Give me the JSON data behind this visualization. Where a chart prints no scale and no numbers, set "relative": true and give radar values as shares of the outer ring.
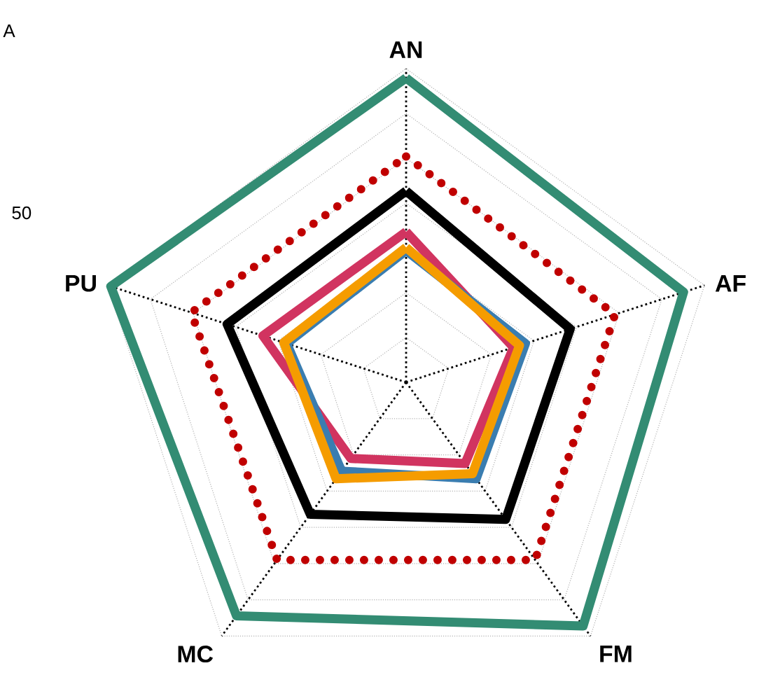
{
  "chart_data": {
    "type": "radar",
    "relative": true,
    "grid": true,
    "line_style": "solid",
    "categories": [
      "AN",
      "AF",
      "FM",
      "MC",
      "PU"
    ],
    "annotations": [
      "A",
      "50"
    ],
    "series": [
      {
        "color": "#338c73",
        "values": [
          0.97,
          0.93,
          0.96,
          0.92,
          0.99
        ]
      },
      {
        "color": "#c00000",
        "line_style": "dotted",
        "values": [
          0.72,
          0.7,
          0.7,
          0.7,
          0.72
        ]
      },
      {
        "color": "#000000",
        "values": [
          0.61,
          0.55,
          0.54,
          0.52,
          0.6
        ]
      },
      {
        "color": "#d13460",
        "values": [
          0.48,
          0.36,
          0.32,
          0.3,
          0.48
        ]
      },
      {
        "color": "#3a7db0",
        "values": [
          0.42,
          0.4,
          0.38,
          0.35,
          0.4
        ]
      },
      {
        "color": "#f59c00",
        "values": [
          0.43,
          0.38,
          0.36,
          0.38,
          0.41
        ]
      }
    ]
  }
}
